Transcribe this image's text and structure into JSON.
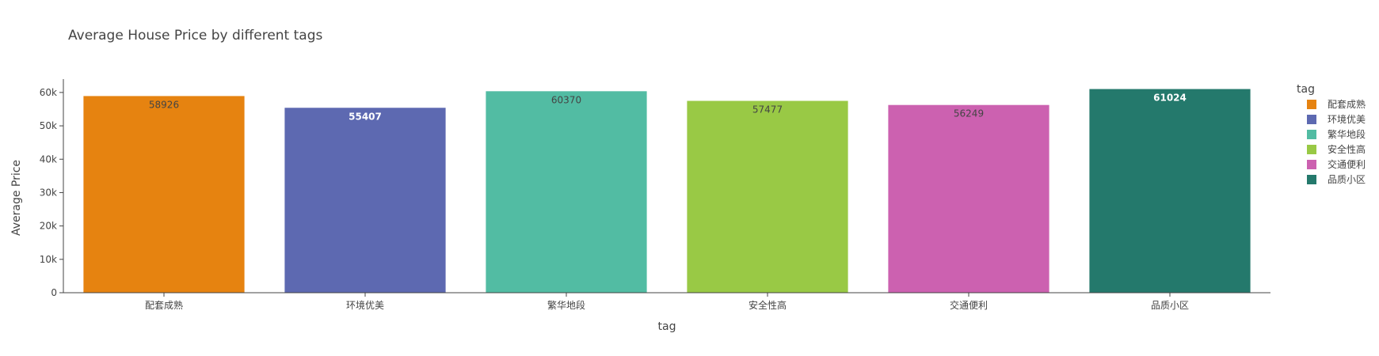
{
  "chart_data": {
    "type": "bar",
    "title": "Average House Price by different tags",
    "xlabel": "tag",
    "ylabel": "Average Price",
    "categories": [
      "配套成熟",
      "环境优美",
      "繁华地段",
      "安全性高",
      "交通便利",
      "品质小区"
    ],
    "values": [
      58926,
      55407,
      60370,
      57477,
      56249,
      61024
    ],
    "value_labels": [
      "58926",
      "55407",
      "60370",
      "57477",
      "56249",
      "61024"
    ],
    "colors": [
      "#E68310",
      "#5D69B1",
      "#52BCA3",
      "#99C945",
      "#CC61B0",
      "#24796C"
    ],
    "label_colors": [
      "#444444",
      "#ffffff",
      "#444444",
      "#444444",
      "#444444",
      "#ffffff"
    ],
    "ylim": [
      0,
      64000
    ],
    "yticks": [
      0,
      10000,
      20000,
      30000,
      40000,
      50000,
      60000
    ],
    "ytick_labels": [
      "0",
      "10k",
      "20k",
      "30k",
      "40k",
      "50k",
      "60k"
    ],
    "grid": false,
    "legend": {
      "title": "tag",
      "position": "right",
      "items": [
        "配套成熟",
        "环境优美",
        "繁华地段",
        "安全性高",
        "交通便利",
        "品质小区"
      ]
    }
  }
}
